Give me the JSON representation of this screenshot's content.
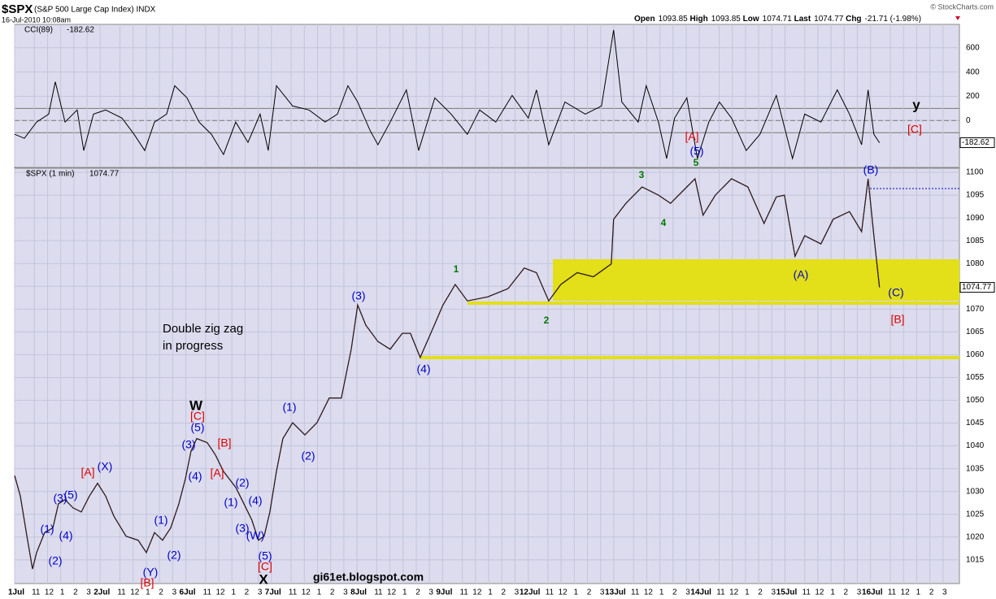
{
  "header": {
    "symbol": "$SPX",
    "name": "(S&P 500 Large Cap Index) INDX",
    "timestamp": "16-Jul-2010 10:08am",
    "copyright": "© StockCharts.com",
    "quote": [
      {
        "label": "Open",
        "value": "1093.85"
      },
      {
        "label": "High",
        "value": "1093.85"
      },
      {
        "label": "Low",
        "value": "1074.71"
      },
      {
        "label": "Last",
        "value": "1074.77"
      },
      {
        "label": "Chg",
        "value": "-21.71 (-1.98%)"
      }
    ]
  },
  "chart_data": [
    {
      "type": "line",
      "title": "CCI(89)",
      "last_value": -182.62,
      "color": "#000000",
      "up_fill": "#5f8a5f",
      "down_fill": "#8a5f5f",
      "xlim": [
        0,
        71.5
      ],
      "ylim": [
        -380,
        793
      ],
      "yticks": [
        0,
        200,
        400,
        600
      ],
      "bands": [
        100,
        -100
      ],
      "grid": true,
      "x": [
        0,
        0.74,
        1.67,
        2.59,
        3.09,
        3.83,
        4.75,
        5.25,
        5.99,
        6.91,
        8.15,
        9.07,
        9.88,
        10.62,
        11.54,
        12.16,
        13.09,
        14.01,
        14.94,
        15.86,
        16.79,
        17.72,
        18.64,
        19.26,
        19.88,
        21.11,
        22.35,
        23.58,
        24.51,
        25.31,
        26.05,
        26.98,
        27.59,
        28.52,
        29.75,
        30.68,
        31.91,
        33.15,
        34.38,
        35.31,
        36.54,
        37.78,
        39.01,
        39.63,
        40.56,
        41.79,
        43.33,
        44.57,
        45.49,
        46.11,
        47.35,
        47.96,
        48.89,
        49.51,
        50.12,
        51.05,
        51.85,
        52.72,
        53.52,
        54.44,
        55.56,
        56.6,
        57.84,
        59.07,
        60,
        61.23,
        62.47,
        63.4,
        64.32,
        64.81,
        65.25,
        65.68
      ],
      "values": [
        -113,
        -147,
        -13,
        53,
        320,
        -13,
        87,
        -247,
        53,
        87,
        20,
        -113,
        -247,
        -13,
        53,
        287,
        187,
        -13,
        -113,
        -280,
        -13,
        -180,
        53,
        -247,
        287,
        120,
        87,
        -13,
        53,
        287,
        153,
        -80,
        -200,
        -13,
        253,
        -247,
        187,
        53,
        -113,
        87,
        -13,
        207,
        20,
        253,
        -200,
        153,
        53,
        120,
        747,
        153,
        -13,
        287,
        -13,
        -313,
        20,
        187,
        -313,
        -13,
        153,
        20,
        -247,
        -113,
        207,
        -313,
        53,
        -13,
        253,
        53,
        -200,
        253,
        -113,
        -182.62
      ]
    },
    {
      "type": "line",
      "title": "$SPX (1 min)",
      "last_value": 1074.77,
      "color": "#1a1a1a",
      "accent": "#c8102e",
      "xlim": [
        0,
        71.5
      ],
      "ylim": [
        1009.8,
        1100.9
      ],
      "yticks": [
        1015,
        1020,
        1025,
        1030,
        1035,
        1040,
        1045,
        1050,
        1055,
        1060,
        1065,
        1070,
        1075,
        1080,
        1085,
        1090,
        1095,
        1100
      ],
      "grid": true,
      "xticks": [
        {
          "value": 0,
          "label": "1Jul"
        },
        {
          "value": 1.5,
          "label": "11"
        },
        {
          "value": 2.5,
          "label": "12"
        },
        {
          "value": 3.5,
          "label": "1"
        },
        {
          "value": 4.5,
          "label": "2"
        },
        {
          "value": 5.5,
          "label": "3"
        },
        {
          "value": 6.5,
          "label": "2Jul"
        },
        {
          "value": 8,
          "label": "11"
        },
        {
          "value": 9,
          "label": "12"
        },
        {
          "value": 10,
          "label": "1"
        },
        {
          "value": 11,
          "label": "2"
        },
        {
          "value": 12,
          "label": "3"
        },
        {
          "value": 13,
          "label": "6Jul"
        },
        {
          "value": 14.5,
          "label": "11"
        },
        {
          "value": 15.5,
          "label": "12"
        },
        {
          "value": 16.5,
          "label": "1"
        },
        {
          "value": 17.5,
          "label": "2"
        },
        {
          "value": 18.5,
          "label": "3"
        },
        {
          "value": 19.5,
          "label": "7Jul"
        },
        {
          "value": 21,
          "label": "11"
        },
        {
          "value": 22,
          "label": "12"
        },
        {
          "value": 23,
          "label": "1"
        },
        {
          "value": 24,
          "label": "2"
        },
        {
          "value": 25,
          "label": "3"
        },
        {
          "value": 26,
          "label": "8Jul"
        },
        {
          "value": 27.5,
          "label": "11"
        },
        {
          "value": 28.5,
          "label": "12"
        },
        {
          "value": 29.5,
          "label": "1"
        },
        {
          "value": 30.5,
          "label": "2"
        },
        {
          "value": 31.5,
          "label": "3"
        },
        {
          "value": 32.5,
          "label": "9Jul"
        },
        {
          "value": 34,
          "label": "11"
        },
        {
          "value": 35,
          "label": "12"
        },
        {
          "value": 36,
          "label": "1"
        },
        {
          "value": 37,
          "label": "2"
        },
        {
          "value": 38,
          "label": "3"
        },
        {
          "value": 39,
          "label": "12Jul"
        },
        {
          "value": 40.5,
          "label": "11"
        },
        {
          "value": 41.5,
          "label": "12"
        },
        {
          "value": 42.5,
          "label": "1"
        },
        {
          "value": 43.5,
          "label": "2"
        },
        {
          "value": 44.5,
          "label": "3"
        },
        {
          "value": 45.5,
          "label": "13Jul"
        },
        {
          "value": 47,
          "label": "11"
        },
        {
          "value": 48,
          "label": "12"
        },
        {
          "value": 49,
          "label": "1"
        },
        {
          "value": 50,
          "label": "2"
        },
        {
          "value": 51,
          "label": "3"
        },
        {
          "value": 52,
          "label": "14Jul"
        },
        {
          "value": 53.5,
          "label": "11"
        },
        {
          "value": 54.5,
          "label": "12"
        },
        {
          "value": 55.5,
          "label": "1"
        },
        {
          "value": 56.5,
          "label": "2"
        },
        {
          "value": 57.5,
          "label": "3"
        },
        {
          "value": 58.5,
          "label": "15Jul"
        },
        {
          "value": 60,
          "label": "11"
        },
        {
          "value": 61,
          "label": "12"
        },
        {
          "value": 62,
          "label": "1"
        },
        {
          "value": 63,
          "label": "2"
        },
        {
          "value": 64,
          "label": "3"
        },
        {
          "value": 65,
          "label": "16Jul"
        },
        {
          "value": 66.5,
          "label": "11"
        },
        {
          "value": 67.5,
          "label": "12"
        },
        {
          "value": 68.5,
          "label": "1"
        },
        {
          "value": 69.5,
          "label": "2"
        },
        {
          "value": 70.5,
          "label": "3"
        }
      ],
      "x": [
        0,
        0.43,
        0.93,
        1.36,
        1.67,
        2.28,
        2.9,
        3.33,
        3.83,
        4.44,
        5.06,
        5.68,
        6.3,
        6.91,
        7.53,
        8.46,
        9.38,
        10,
        10.62,
        11.23,
        11.85,
        12.47,
        12.96,
        13.4,
        13.83,
        14.63,
        15.25,
        15.86,
        16.79,
        17.41,
        18.02,
        18.52,
        18.95,
        19.38,
        19.88,
        20.37,
        21.11,
        22.04,
        22.96,
        23.89,
        24.81,
        25.56,
        26.05,
        26.67,
        27.59,
        28.52,
        29.44,
        30.06,
        30.8,
        31.6,
        32.53,
        33.46,
        34.38,
        35.93,
        37.47,
        38.7,
        39.63,
        40.56,
        41.48,
        42.72,
        43.95,
        45.31,
        45.49,
        46.42,
        47.65,
        48.89,
        49.81,
        50.74,
        51.67,
        52.28,
        53.21,
        54.44,
        55.68,
        56.91,
        57.84,
        58.46,
        59.26,
        60,
        61.23,
        62.16,
        63.4,
        64.32,
        64.81,
        65.25,
        65.68
      ],
      "values": [
        1033.5,
        1029,
        1020.2,
        1013,
        1016.6,
        1021,
        1022,
        1027.3,
        1028.2,
        1026.4,
        1025.5,
        1029,
        1031.8,
        1029,
        1024.6,
        1020.2,
        1019.3,
        1016.6,
        1021,
        1019.3,
        1022,
        1027.3,
        1032.7,
        1038.9,
        1041.6,
        1040.7,
        1038,
        1034.4,
        1030.9,
        1027.3,
        1023.7,
        1019.3,
        1020.2,
        1025.5,
        1034.4,
        1041.6,
        1045.1,
        1042.4,
        1045.1,
        1050.5,
        1050.5,
        1061.2,
        1070.9,
        1066.5,
        1062.9,
        1061.2,
        1064.7,
        1064.7,
        1059.4,
        1064.7,
        1070.9,
        1075.4,
        1071.8,
        1072.7,
        1074.5,
        1079,
        1078,
        1071.8,
        1075.4,
        1078,
        1077.1,
        1079.9,
        1089.7,
        1093.2,
        1096.8,
        1095,
        1093.2,
        1095.9,
        1098.6,
        1090.6,
        1095,
        1098.6,
        1096.8,
        1088.8,
        1094.6,
        1095,
        1081.6,
        1086.1,
        1084.3,
        1089.7,
        1091.4,
        1087,
        1098.6,
        1086.1,
        1074.77
      ],
      "annotations": [
        {
          "text": "(1)",
          "color": "#0000cc"
        },
        {
          "text": "(2)",
          "color": "#0000cc"
        },
        {
          "text": "(3)",
          "color": "#0000cc"
        },
        {
          "text": "(5)",
          "color": "#0000cc"
        },
        {
          "text": "(4)",
          "color": "#0000cc"
        },
        {
          "text": "[A]",
          "color": "#dd0000"
        },
        {
          "text": "(X)",
          "color": "#0000cc"
        },
        {
          "text": "[B]",
          "color": "#dd0000"
        },
        {
          "text": "(Y)",
          "color": "#0000cc"
        },
        {
          "text": "(1)",
          "color": "#0000cc"
        },
        {
          "text": "(2)",
          "color": "#0000cc"
        },
        {
          "text": "W",
          "color": "#000000"
        },
        {
          "text": "[C]",
          "color": "#dd0000"
        },
        {
          "text": "(5)",
          "color": "#0000cc"
        },
        {
          "text": "(3)",
          "color": "#0000cc"
        },
        {
          "text": "(4)",
          "color": "#0000cc"
        },
        {
          "text": "[B]",
          "color": "#dd0000"
        },
        {
          "text": "[A]",
          "color": "#dd0000"
        },
        {
          "text": "(2)",
          "color": "#0000cc"
        },
        {
          "text": "(1)",
          "color": "#0000cc"
        },
        {
          "text": "(4)",
          "color": "#0000cc"
        },
        {
          "text": "(3)",
          "color": "#0000cc"
        },
        {
          "text": "(W)",
          "color": "#0000cc"
        },
        {
          "text": "(5)",
          "color": "#0000cc"
        },
        {
          "text": "[C]",
          "color": "#dd0000"
        },
        {
          "text": "X",
          "color": "#000000"
        },
        {
          "text": "(1)",
          "color": "#0000cc"
        },
        {
          "text": "(2)",
          "color": "#0000cc"
        },
        {
          "text": "(3)",
          "color": "#0000cc"
        },
        {
          "text": "(4)",
          "color": "#0000cc"
        },
        {
          "text": "1",
          "color": "#007700"
        },
        {
          "text": "2",
          "color": "#007700"
        },
        {
          "text": "3",
          "color": "#007700"
        },
        {
          "text": "4",
          "color": "#007700"
        },
        {
          "text": "5",
          "color": "#007700"
        },
        {
          "text": "(5)",
          "color": "#0000cc"
        },
        {
          "text": "[A]",
          "color": "#dd0000"
        },
        {
          "text": "(A)",
          "color": "#0000cc"
        },
        {
          "text": "(B)",
          "color": "#0000cc"
        },
        {
          "text": "(C)",
          "color": "#0000cc"
        },
        {
          "text": "[B]",
          "color": "#dd0000"
        },
        {
          "text": "y",
          "color": "#000000"
        },
        {
          "text": "[C]",
          "color": "#dd0000"
        }
      ],
      "notes": [
        "Double zig zag",
        "in progress"
      ],
      "watermark": "gi61et.blogspot.com"
    }
  ]
}
